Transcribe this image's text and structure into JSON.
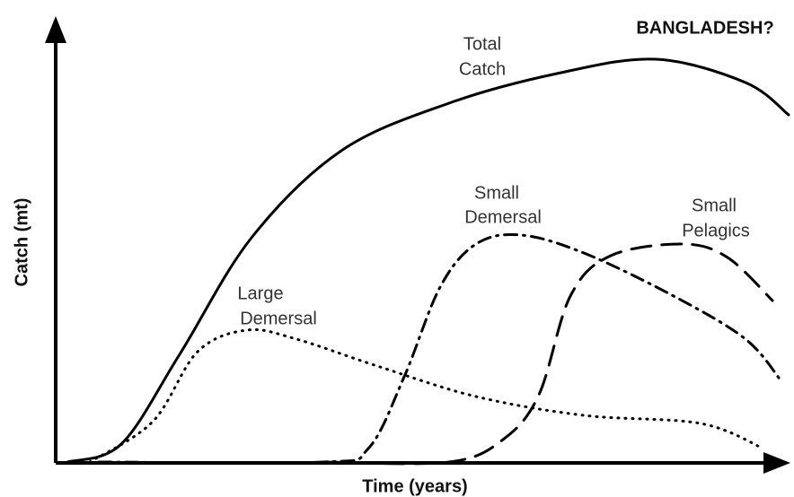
{
  "title": "BANGLADESH?",
  "y_axis_label": "Catch (mt)",
  "x_axis_label": "Time (years)",
  "curves": [
    {
      "label": [
        "Total",
        "Catch"
      ]
    },
    {
      "label": [
        "Small",
        "Demersal"
      ]
    },
    {
      "label": [
        "Small",
        "Pelagics"
      ]
    },
    {
      "label": [
        "Large",
        "Demersal"
      ]
    }
  ]
}
